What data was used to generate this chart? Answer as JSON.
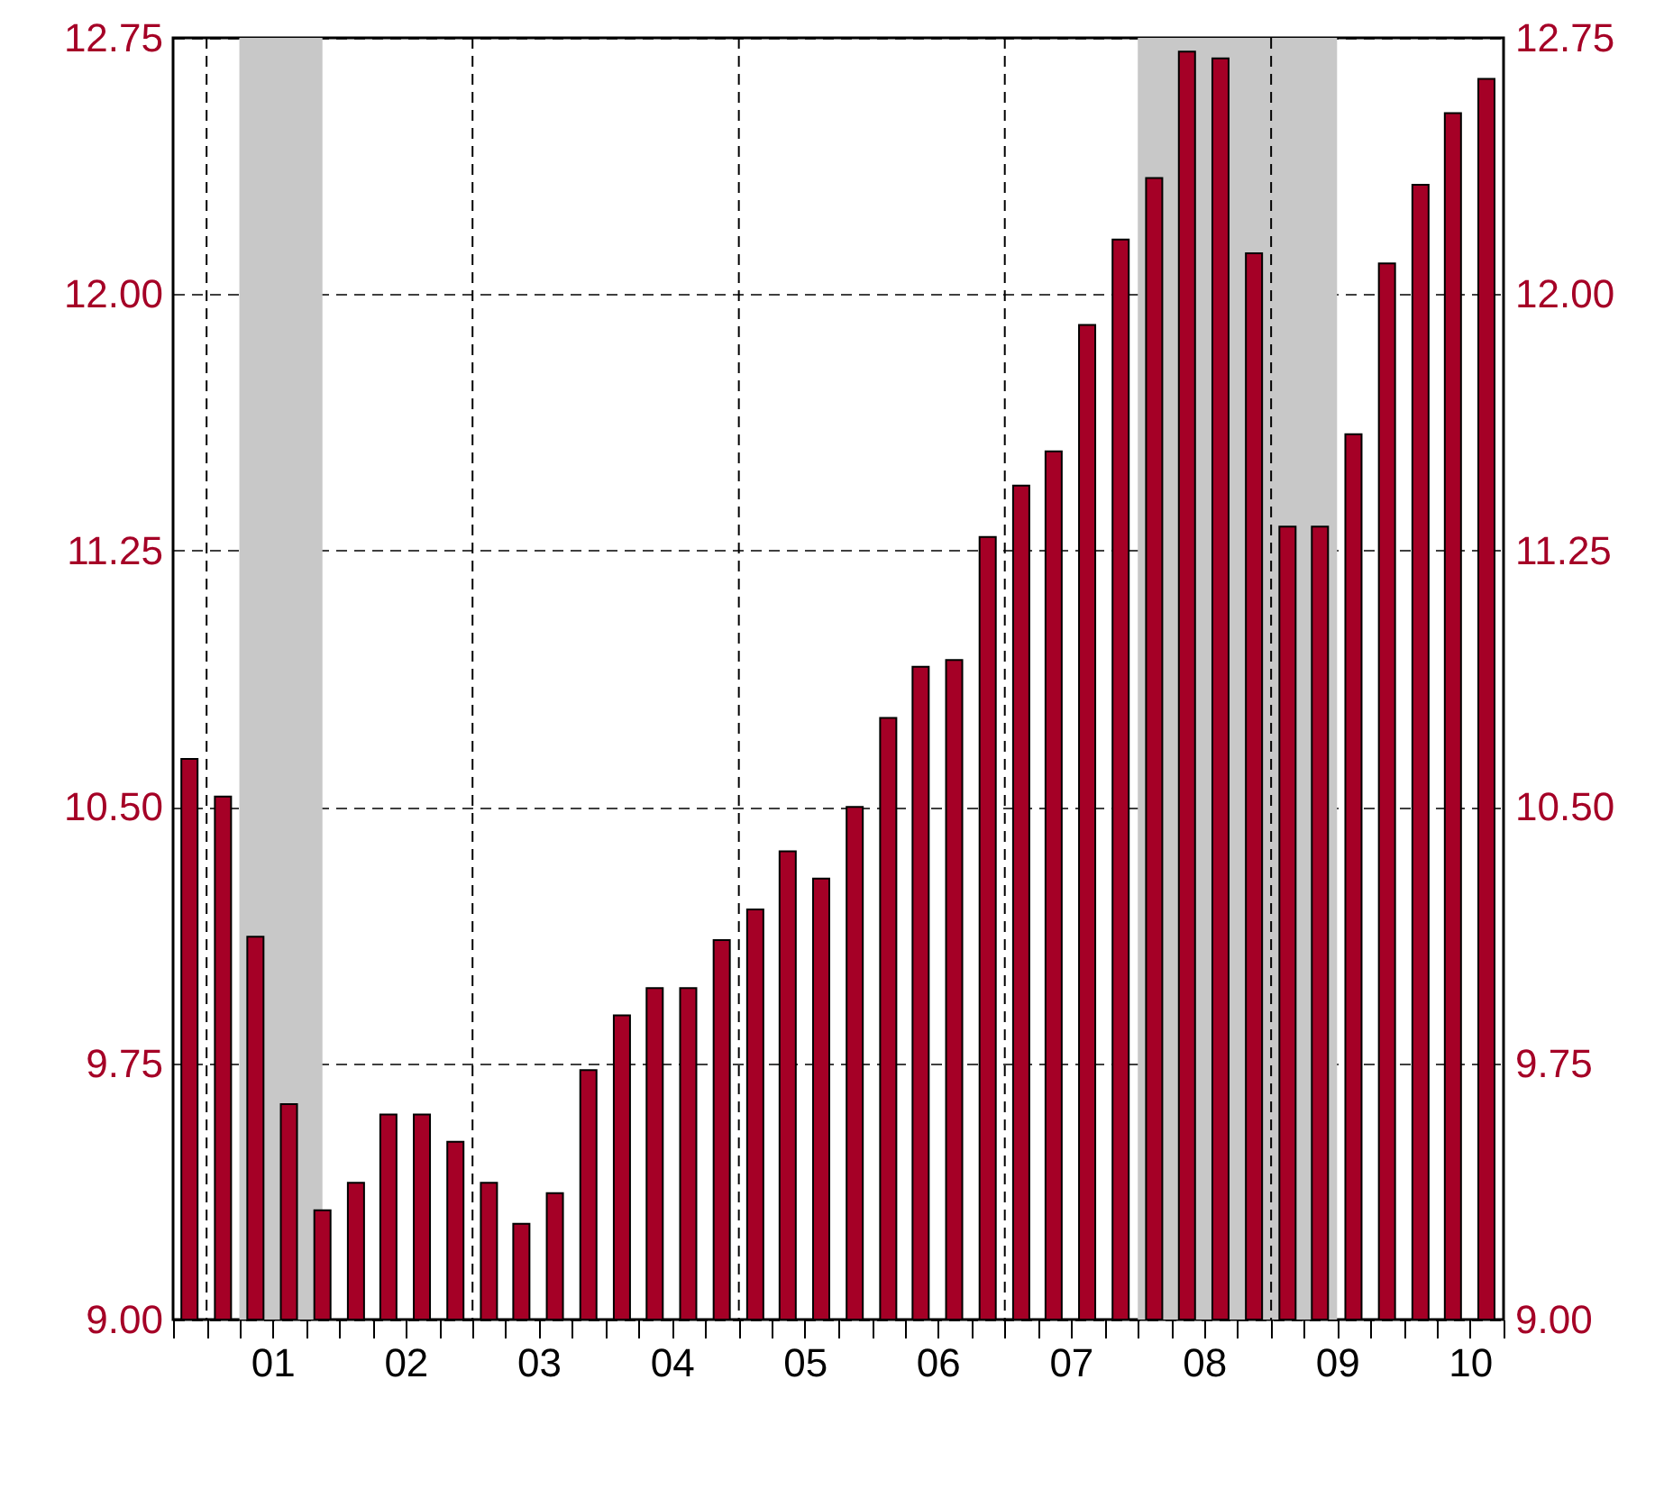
{
  "chart_data": {
    "type": "bar",
    "x": [
      "2000-11-15",
      "2001-02-15",
      "2001-05-15",
      "2001-08-15",
      "2001-11-15",
      "2002-02-15",
      "2002-05-15",
      "2002-08-15",
      "2002-11-15",
      "2003-02-15",
      "2003-05-15",
      "2003-08-15",
      "2003-11-15",
      "2004-02-15",
      "2004-05-15",
      "2004-08-15",
      "2004-11-15",
      "2005-02-15",
      "2005-05-15",
      "2005-08-15",
      "2005-11-15",
      "2006-02-15",
      "2006-05-15",
      "2006-08-15",
      "2006-11-15",
      "2007-02-15",
      "2007-05-15",
      "2007-08-15",
      "2007-11-15",
      "2008-02-15",
      "2008-05-15",
      "2008-08-15",
      "2008-11-15",
      "2009-02-15",
      "2009-05-15",
      "2009-08-15",
      "2009-11-15",
      "2010-02-15",
      "2010-05-15",
      "2010-08-15"
    ],
    "values": [
      10.64,
      10.53,
      10.12,
      9.63,
      9.32,
      9.4,
      9.6,
      9.6,
      9.52,
      9.4,
      9.28,
      9.37,
      9.73,
      9.89,
      9.97,
      9.97,
      10.11,
      10.2,
      10.37,
      10.29,
      10.5,
      10.76,
      10.91,
      10.93,
      11.29,
      11.44,
      11.54,
      11.91,
      12.16,
      12.34,
      12.71,
      12.69,
      12.12,
      11.32,
      11.32,
      11.59,
      12.09,
      12.32,
      12.53,
      12.63
    ],
    "color": "#a50026",
    "xlim": [
      "2000-10-01",
      "2010-10-01"
    ],
    "xticks": [
      {
        "value": "2000-10-01",
        "label": null
      },
      {
        "value": "2001-01-01",
        "label": null
      },
      {
        "value": "2001-04-01",
        "label": null
      },
      {
        "value": "2001-07-01",
        "label": "01"
      },
      {
        "value": "2001-10-01",
        "label": null
      },
      {
        "value": "2002-01-01",
        "label": null
      },
      {
        "value": "2002-04-01",
        "label": null
      },
      {
        "value": "2002-07-01",
        "label": "02"
      },
      {
        "value": "2002-10-01",
        "label": null
      },
      {
        "value": "2003-01-01",
        "label": null
      },
      {
        "value": "2003-04-01",
        "label": null
      },
      {
        "value": "2003-07-01",
        "label": "03"
      },
      {
        "value": "2003-10-01",
        "label": null
      },
      {
        "value": "2004-01-01",
        "label": null
      },
      {
        "value": "2004-04-01",
        "label": null
      },
      {
        "value": "2004-07-01",
        "label": "04"
      },
      {
        "value": "2004-10-01",
        "label": null
      },
      {
        "value": "2005-01-01",
        "label": null
      },
      {
        "value": "2005-04-01",
        "label": null
      },
      {
        "value": "2005-07-01",
        "label": "05"
      },
      {
        "value": "2005-10-01",
        "label": null
      },
      {
        "value": "2006-01-01",
        "label": null
      },
      {
        "value": "2006-04-01",
        "label": null
      },
      {
        "value": "2006-07-01",
        "label": "06"
      },
      {
        "value": "2006-10-01",
        "label": null
      },
      {
        "value": "2007-01-01",
        "label": null
      },
      {
        "value": "2007-04-01",
        "label": null
      },
      {
        "value": "2007-07-01",
        "label": "07"
      },
      {
        "value": "2007-10-01",
        "label": null
      },
      {
        "value": "2008-01-01",
        "label": null
      },
      {
        "value": "2008-04-01",
        "label": null
      },
      {
        "value": "2008-07-01",
        "label": "08"
      },
      {
        "value": "2008-10-01",
        "label": null
      },
      {
        "value": "2009-01-01",
        "label": null
      },
      {
        "value": "2009-04-01",
        "label": null
      },
      {
        "value": "2009-07-01",
        "label": "09"
      },
      {
        "value": "2009-10-01",
        "label": null
      },
      {
        "value": "2010-01-01",
        "label": null
      },
      {
        "value": "2010-04-01",
        "label": null
      },
      {
        "value": "2010-07-01",
        "label": "10"
      },
      {
        "value": "2010-10-01",
        "label": null
      }
    ],
    "ylim": [
      9,
      12.75
    ],
    "yticks": [
      {
        "value": 9,
        "label": "9.00"
      },
      {
        "value": 9.75,
        "label": "9.75"
      },
      {
        "value": 10.5,
        "label": "10.50"
      },
      {
        "value": 11.25,
        "label": "11.25"
      },
      {
        "value": 12,
        "label": "12.00"
      },
      {
        "value": 12.75,
        "label": "12.75"
      }
    ],
    "y2lim": [
      9,
      12.75
    ],
    "y2ticks": [
      {
        "value": 9,
        "label": "9.00"
      },
      {
        "value": 9.75,
        "label": "9.75"
      },
      {
        "value": 10.5,
        "label": "10.50"
      },
      {
        "value": 11.25,
        "label": "11.25"
      },
      {
        "value": 12,
        "label": "12.00"
      },
      {
        "value": 12.75,
        "label": "12.75"
      }
    ],
    "grid": "y",
    "line_style": "dashed",
    "ref_lines": [
      {
        "axis": "x",
        "value": "2001-01-01",
        "color": "#000000",
        "line_style": "dashed"
      },
      {
        "axis": "x",
        "value": "2003-01-01",
        "color": "#000000",
        "line_style": "dashed"
      },
      {
        "axis": "x",
        "value": "2005-01-01",
        "color": "#000000",
        "line_style": "dashed"
      },
      {
        "axis": "x",
        "value": "2007-01-01",
        "color": "#000000",
        "line_style": "dashed"
      },
      {
        "axis": "x",
        "value": "2009-01-01",
        "color": "#000000",
        "line_style": "dashed"
      }
    ],
    "bands": [
      {
        "axis": "x",
        "from": "2001-04-01",
        "to": "2001-11-15",
        "color": "#c8c8c8"
      },
      {
        "axis": "x",
        "from": "2008-01-01",
        "to": "2009-07-01",
        "color": "#c8c8c8"
      }
    ]
  }
}
